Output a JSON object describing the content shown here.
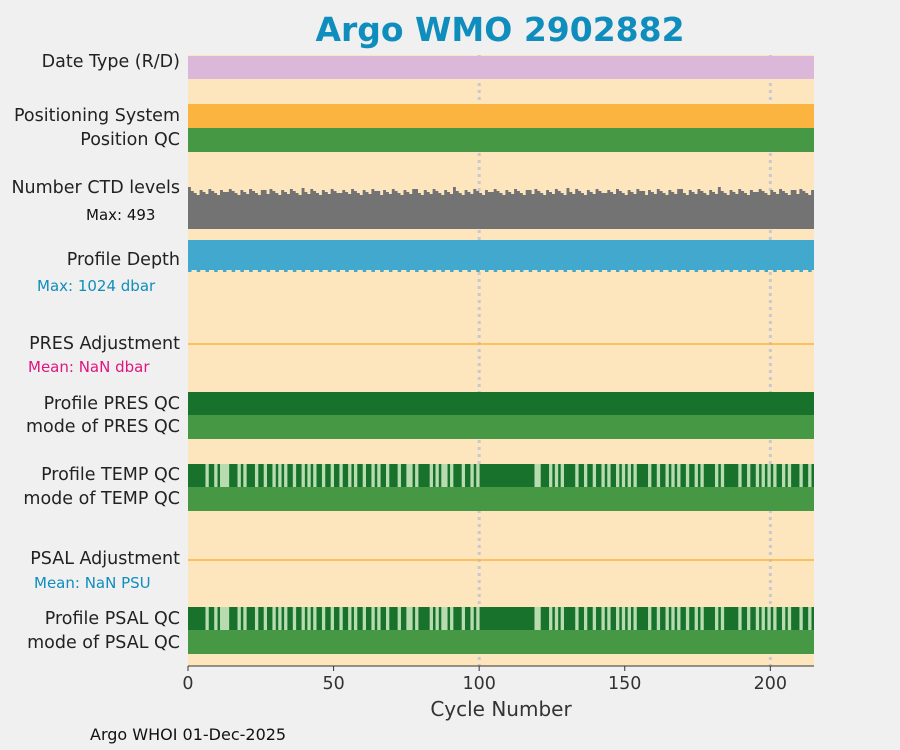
{
  "title": "Argo WMO 2902882",
  "footer": "Argo WHOI 01-Dec-2025",
  "colors": {
    "title": "#0f8dbd",
    "background": "#fde6bd",
    "date_type": "#dbb8da",
    "positioning": "#fbb440",
    "qc_good": "#469845",
    "qc_dark": "#18722b",
    "qc_light": "#b8dcb0",
    "ctd_levels": "#737373",
    "profile_depth": "#42a8cd",
    "adjustment_line": "#fbb440",
    "pres_mean": "#e0157f",
    "psal_mean": "#0f8dbd",
    "grid": "#c8c8d0"
  },
  "labels": {
    "date_type": "Date Type (R/D)",
    "positioning_system": "Positioning System",
    "position_qc": "Position QC",
    "ctd_levels": "Number CTD levels",
    "ctd_max": "Max: 493",
    "profile_depth": "Profile Depth",
    "depth_max": "Max: 1024 dbar",
    "pres_adjustment": "PRES Adjustment",
    "pres_mean": "Mean:  NaN dbar",
    "profile_pres_qc": "Profile PRES QC",
    "mode_pres_qc": "mode of PRES QC",
    "profile_temp_qc": "Profile TEMP QC",
    "mode_temp_qc": "mode of TEMP QC",
    "psal_adjustment": "PSAL Adjustment",
    "psal_mean": "Mean:  NaN PSU",
    "profile_psal_qc": "Profile PSAL QC",
    "mode_psal_qc": "mode of PSAL QC"
  },
  "chart_data": {
    "type": "bar",
    "title": "Argo WMO 2902882",
    "xlabel": "Cycle Number",
    "xlim": [
      0,
      215
    ],
    "xticks": [
      0,
      50,
      100,
      150,
      200
    ],
    "xtick_labels": [
      "0",
      "50",
      "100",
      "150",
      "200"
    ],
    "grid_x": [
      100,
      200
    ],
    "n_cycles": 215,
    "ctd_levels_max": 493,
    "profile_depth_max_dbar": 1024,
    "pres_adjustment_mean": "NaN",
    "psal_adjustment_mean": "NaN",
    "temp_qc_light_cycles": [
      6,
      9,
      11,
      12,
      13,
      17,
      19,
      23,
      26,
      29,
      31,
      33,
      36,
      39,
      41,
      43,
      46,
      49,
      52,
      55,
      57,
      60,
      63,
      65,
      68,
      72,
      75,
      76,
      78,
      83,
      85,
      87,
      88,
      90,
      94,
      97,
      99,
      119,
      120,
      124,
      126,
      128,
      133,
      136,
      139,
      142,
      144,
      147,
      149,
      151,
      153,
      158,
      161,
      164,
      166,
      168,
      171,
      174,
      176,
      181,
      183,
      189,
      192,
      195,
      197,
      199,
      201,
      204,
      206,
      210,
      213
    ],
    "psal_qc_light_cycles": [
      6,
      9,
      11,
      12,
      13,
      17,
      19,
      23,
      26,
      29,
      31,
      33,
      36,
      39,
      41,
      43,
      46,
      49,
      52,
      55,
      57,
      60,
      63,
      65,
      68,
      72,
      75,
      76,
      78,
      83,
      85,
      87,
      88,
      90,
      94,
      97,
      99,
      119,
      120,
      124,
      126,
      128,
      133,
      136,
      139,
      142,
      144,
      147,
      149,
      151,
      153,
      158,
      161,
      164,
      166,
      168,
      171,
      174,
      176,
      181,
      183,
      189,
      192,
      195,
      197,
      199,
      201,
      204,
      206,
      210,
      213
    ]
  }
}
